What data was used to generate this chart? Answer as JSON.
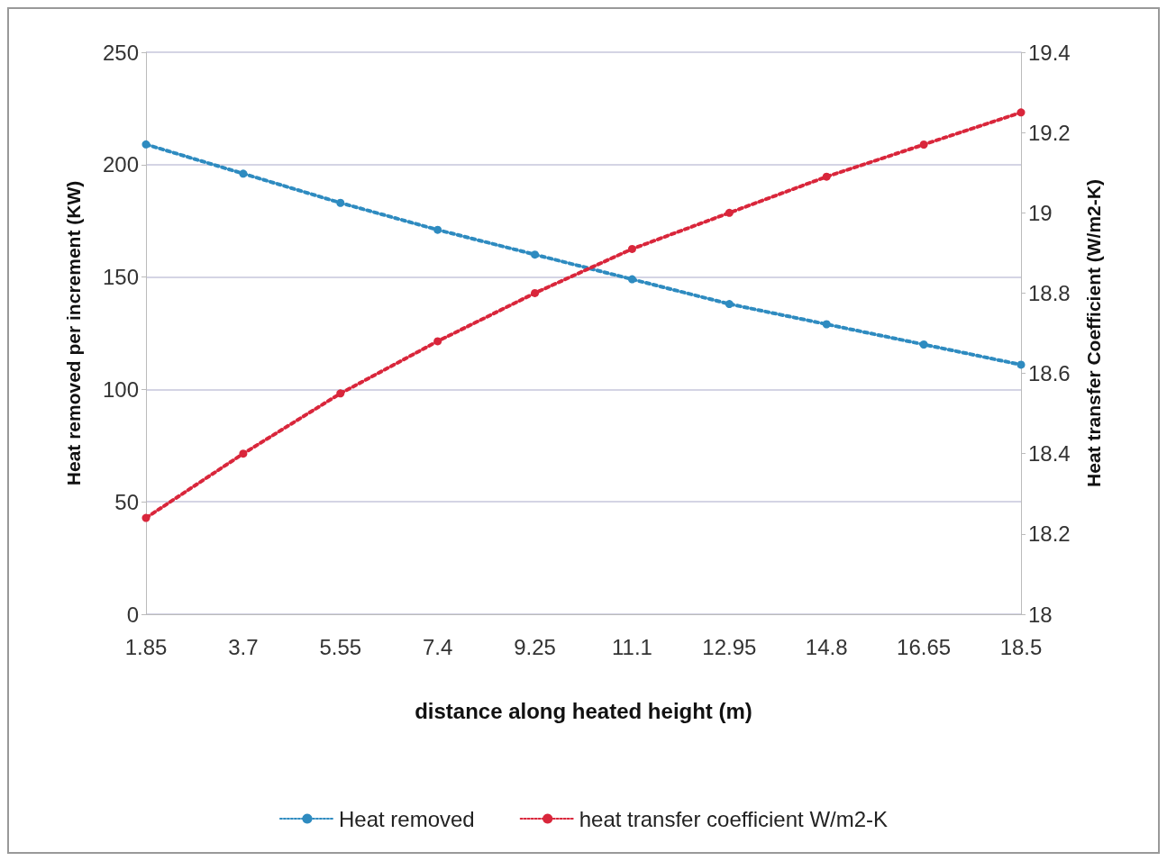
{
  "chart_data": {
    "type": "line",
    "xlabel": "distance along heated height (m)",
    "ylabel": "Heat removed per increment (KW)",
    "y2label": "Heat transfer Coefficient (W/m2-K)",
    "categories": [
      "1.85",
      "3.7",
      "5.55",
      "7.4",
      "9.25",
      "11.1",
      "12.95",
      "14.8",
      "16.65",
      "18.5"
    ],
    "series": [
      {
        "name": "Heat removed",
        "color": "#2e8bc0",
        "values": [
          209,
          196,
          183,
          171,
          160,
          149,
          138,
          129,
          120,
          111
        ]
      },
      {
        "name": "heat transfer coefficient W/m2-K",
        "color": "#d9263b",
        "axis": "y2",
        "values": [
          18.24,
          18.4,
          18.55,
          18.68,
          18.8,
          18.91,
          19.0,
          19.09,
          19.17,
          19.25
        ]
      }
    ],
    "ylim": [
      0,
      250
    ],
    "yticks": [
      0,
      50,
      100,
      150,
      200,
      250
    ],
    "y2lim": [
      18,
      19.4
    ],
    "y2ticks": [
      18,
      18.2,
      18.4,
      18.6,
      18.8,
      19,
      19.2,
      19.4
    ],
    "grid": "y",
    "legend": "bottom",
    "marker": "circle",
    "line_style": "dotted"
  }
}
